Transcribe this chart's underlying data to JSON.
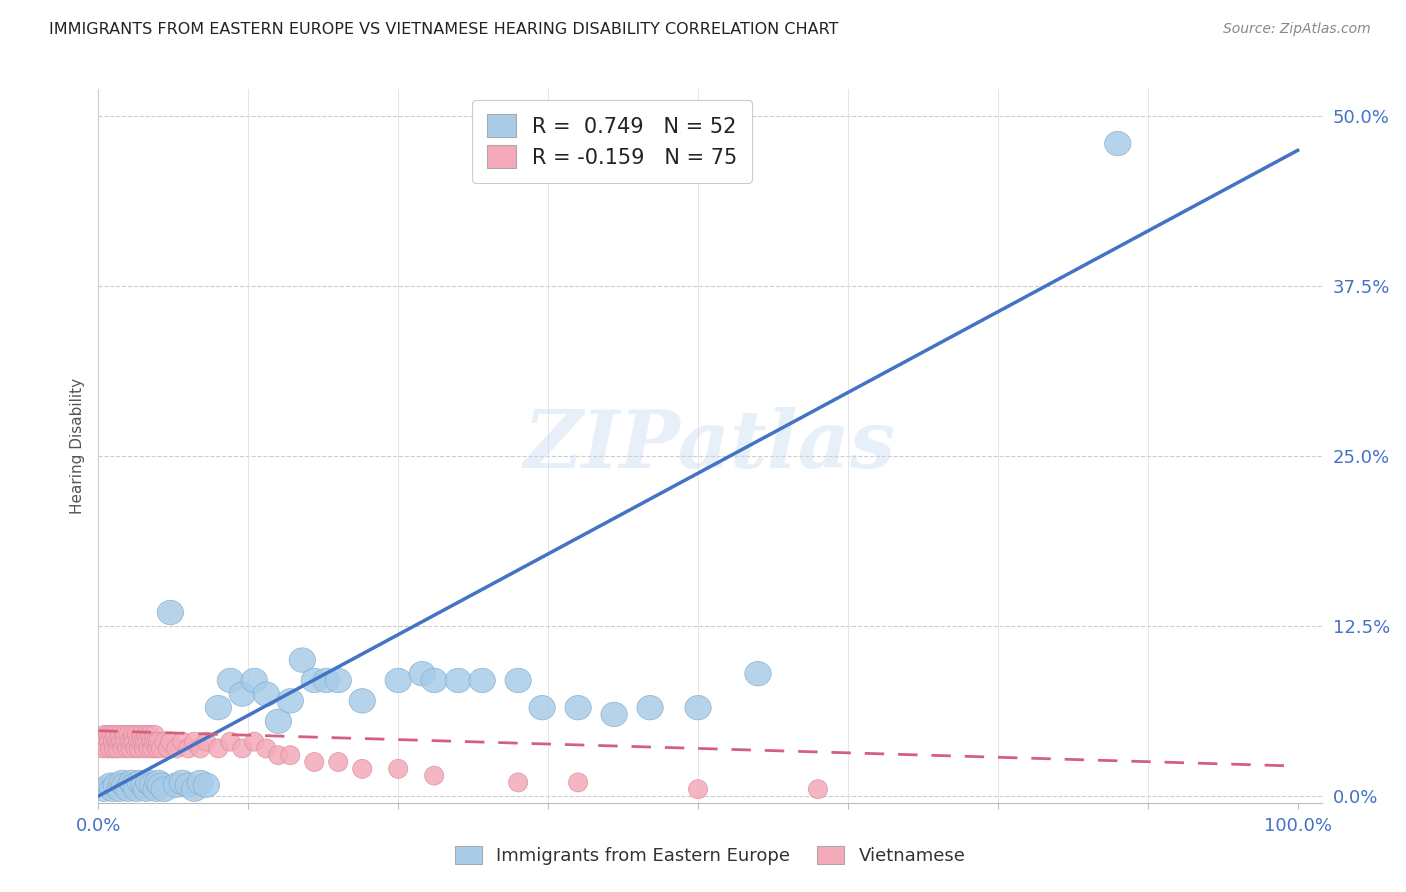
{
  "title": "IMMIGRANTS FROM EASTERN EUROPE VS VIETNAMESE HEARING DISABILITY CORRELATION CHART",
  "source": "Source: ZipAtlas.com",
  "ylabel": "Hearing Disability",
  "ytick_labels": [
    "0.0%",
    "12.5%",
    "25.0%",
    "37.5%",
    "50.0%"
  ],
  "ytick_vals": [
    0.0,
    0.125,
    0.25,
    0.375,
    0.5
  ],
  "xtick_labels": [
    "0.0%",
    "",
    "",
    "",
    "",
    "",
    "",
    "",
    "100.0%"
  ],
  "xtick_vals": [
    0.0,
    0.125,
    0.25,
    0.375,
    0.5,
    0.625,
    0.75,
    0.875,
    1.0
  ],
  "xlim": [
    0.0,
    1.02
  ],
  "ylim": [
    -0.005,
    0.52
  ],
  "blue_color": "#A8CCE8",
  "blue_edge_color": "#80AACC",
  "pink_color": "#F4AABA",
  "pink_edge_color": "#D88898",
  "blue_line_color": "#4472C4",
  "pink_line_color": "#D46080",
  "watermark": "ZIPatlas",
  "blue_scatter_x": [
    0.005,
    0.01,
    0.012,
    0.015,
    0.018,
    0.02,
    0.022,
    0.025,
    0.028,
    0.03,
    0.032,
    0.035,
    0.038,
    0.04,
    0.042,
    0.045,
    0.048,
    0.05,
    0.052,
    0.055,
    0.06,
    0.065,
    0.07,
    0.075,
    0.08,
    0.085,
    0.09,
    0.1,
    0.11,
    0.12,
    0.13,
    0.14,
    0.15,
    0.16,
    0.17,
    0.18,
    0.19,
    0.2,
    0.22,
    0.25,
    0.27,
    0.28,
    0.3,
    0.32,
    0.35,
    0.37,
    0.4,
    0.43,
    0.46,
    0.5,
    0.55,
    0.85
  ],
  "blue_scatter_y": [
    0.005,
    0.008,
    0.005,
    0.008,
    0.005,
    0.01,
    0.008,
    0.005,
    0.01,
    0.008,
    0.005,
    0.01,
    0.008,
    0.005,
    0.01,
    0.008,
    0.005,
    0.01,
    0.008,
    0.005,
    0.135,
    0.008,
    0.01,
    0.008,
    0.005,
    0.01,
    0.008,
    0.065,
    0.085,
    0.075,
    0.085,
    0.075,
    0.055,
    0.07,
    0.1,
    0.085,
    0.085,
    0.085,
    0.07,
    0.085,
    0.09,
    0.085,
    0.085,
    0.085,
    0.085,
    0.065,
    0.065,
    0.06,
    0.065,
    0.065,
    0.09,
    0.48
  ],
  "pink_scatter_x": [
    0.002,
    0.003,
    0.004,
    0.005,
    0.006,
    0.007,
    0.008,
    0.009,
    0.01,
    0.011,
    0.012,
    0.013,
    0.014,
    0.015,
    0.016,
    0.017,
    0.018,
    0.019,
    0.02,
    0.021,
    0.022,
    0.023,
    0.024,
    0.025,
    0.026,
    0.027,
    0.028,
    0.029,
    0.03,
    0.031,
    0.032,
    0.033,
    0.034,
    0.035,
    0.036,
    0.037,
    0.038,
    0.039,
    0.04,
    0.041,
    0.042,
    0.043,
    0.044,
    0.045,
    0.046,
    0.047,
    0.048,
    0.049,
    0.05,
    0.052,
    0.055,
    0.058,
    0.06,
    0.065,
    0.07,
    0.075,
    0.08,
    0.085,
    0.09,
    0.1,
    0.11,
    0.12,
    0.13,
    0.14,
    0.15,
    0.16,
    0.18,
    0.2,
    0.22,
    0.25,
    0.28,
    0.35,
    0.4,
    0.5,
    0.6
  ],
  "pink_scatter_y": [
    0.04,
    0.035,
    0.04,
    0.045,
    0.04,
    0.035,
    0.045,
    0.04,
    0.035,
    0.045,
    0.04,
    0.035,
    0.045,
    0.04,
    0.035,
    0.04,
    0.045,
    0.04,
    0.035,
    0.04,
    0.045,
    0.04,
    0.035,
    0.045,
    0.04,
    0.035,
    0.04,
    0.045,
    0.04,
    0.035,
    0.045,
    0.04,
    0.035,
    0.04,
    0.045,
    0.04,
    0.035,
    0.04,
    0.045,
    0.04,
    0.035,
    0.045,
    0.04,
    0.035,
    0.04,
    0.045,
    0.04,
    0.035,
    0.04,
    0.035,
    0.04,
    0.035,
    0.04,
    0.035,
    0.04,
    0.035,
    0.04,
    0.035,
    0.04,
    0.035,
    0.04,
    0.035,
    0.04,
    0.035,
    0.03,
    0.03,
    0.025,
    0.025,
    0.02,
    0.02,
    0.015,
    0.01,
    0.01,
    0.005,
    0.005
  ],
  "blue_line_x": [
    0.0,
    1.0
  ],
  "blue_line_y": [
    0.0,
    0.475
  ],
  "pink_line_x": [
    0.0,
    1.0
  ],
  "pink_line_y": [
    0.048,
    0.022
  ],
  "legend_label_blue": "Immigrants from Eastern Europe",
  "legend_label_pink": "Vietnamese",
  "background_color": "#FFFFFF",
  "grid_color": "#CCCCCC",
  "title_color": "#222222",
  "tick_color": "#4472C4",
  "legend_r1_text": "R =  0.749   N = 52",
  "legend_r2_text": "R = -0.159   N = 75"
}
